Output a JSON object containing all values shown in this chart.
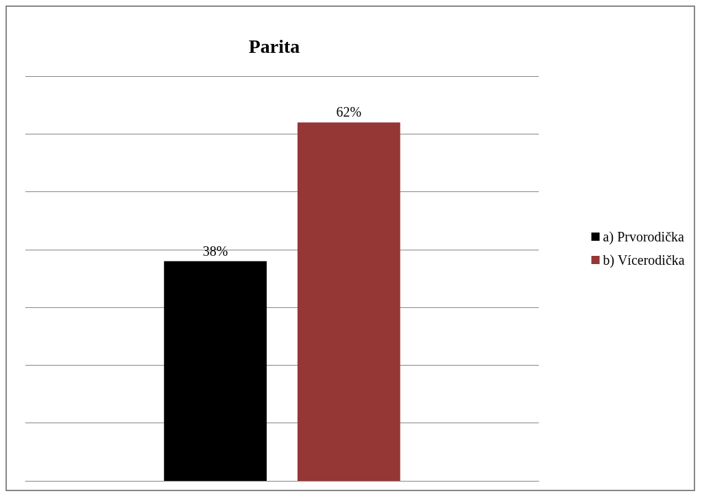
{
  "chart_data": {
    "type": "bar",
    "title": "Parita",
    "categories": [
      null
    ],
    "series": [
      {
        "name": "a) Prvorodička",
        "color": "#000000",
        "values": [
          38
        ],
        "value_labels": [
          "38%"
        ]
      },
      {
        "name": "b) Vícerodička",
        "color": "#953735",
        "values": [
          62
        ],
        "value_labels": [
          "62%"
        ]
      }
    ],
    "ylim": [
      0,
      70
    ],
    "yticks": [
      {
        "value": 0,
        "label": null
      },
      {
        "value": 10,
        "label": null
      },
      {
        "value": 20,
        "label": null
      },
      {
        "value": 30,
        "label": null
      },
      {
        "value": 40,
        "label": null
      },
      {
        "value": 50,
        "label": null
      },
      {
        "value": 60,
        "label": null
      },
      {
        "value": 70,
        "label": null
      }
    ],
    "grid": true,
    "legend": "right"
  }
}
